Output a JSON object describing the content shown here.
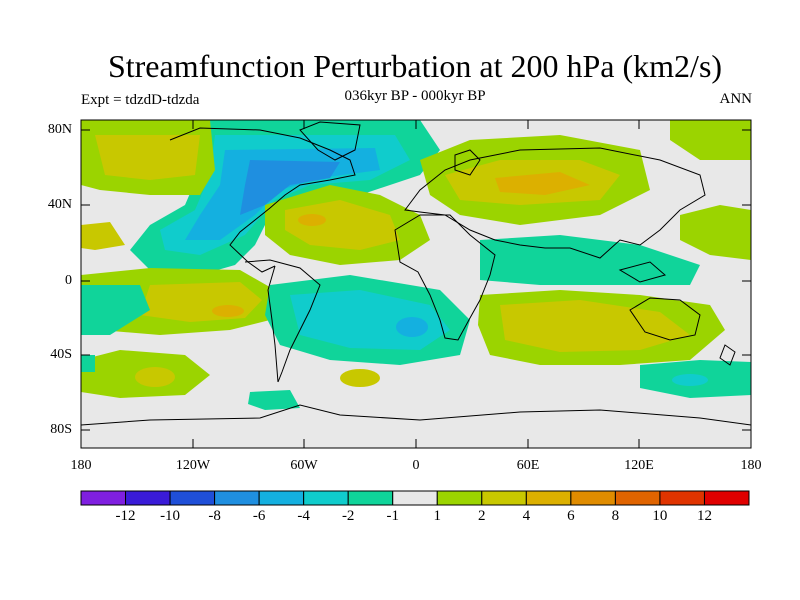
{
  "title": "Streamfunction Perturbation at 200 hPa (km2/s)",
  "subtitle": "036kyr BP - 000kyr BP",
  "left_label": "Expt = tdzdD-tdzda",
  "right_label": "ANN",
  "lat_labels": [
    "80N",
    "40N",
    "0",
    "40S",
    "80S"
  ],
  "lon_labels": [
    "180",
    "120W",
    "60W",
    "0",
    "60E",
    "120E",
    "180"
  ],
  "colorbar": {
    "labels": [
      "-12",
      "-10",
      "-8",
      "-6",
      "-4",
      "-2",
      "-1",
      "1",
      "2",
      "4",
      "6",
      "8",
      "10",
      "12"
    ],
    "colors": [
      "#7f1fe0",
      "#3a1bd8",
      "#1f4fd8",
      "#1f8fe0",
      "#14b0e0",
      "#10cccc",
      "#10d49a",
      "#e8e8e8",
      "#9bd400",
      "#c8c800",
      "#dcb000",
      "#e08c00",
      "#e06400",
      "#e03400",
      "#e00000"
    ]
  },
  "colors": {
    "background": "#e8e8e8",
    "pos_weak": "#9bd400",
    "pos_mid": "#c8c800",
    "pos_strong": "#dcb000",
    "neg_weak": "#10d49a",
    "neg_mid": "#10cccc",
    "neg_strong": "#14b0e0",
    "neg_core": "#1f8fe0"
  }
}
